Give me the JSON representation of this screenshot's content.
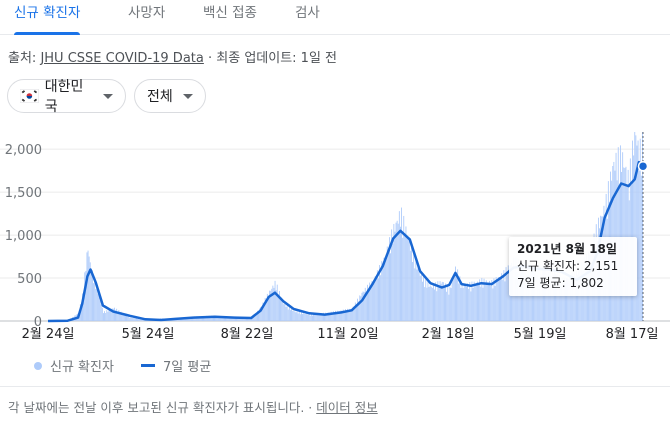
{
  "tabs": [
    {
      "label": "신규 확진자",
      "active": true
    },
    {
      "label": "사망자",
      "active": false
    },
    {
      "label": "백신 접종",
      "active": false
    },
    {
      "label": "검사",
      "active": false
    }
  ],
  "source": {
    "prefix": "출처: ",
    "link_label": "JHU CSSE COVID-19 Data",
    "separator": " · ",
    "updated_label": "최종 업데이트: 1일 전"
  },
  "filters": {
    "country": {
      "label": "대한민국",
      "flag_icon": "south-korea-flag-icon"
    },
    "scope": {
      "label": "전체"
    }
  },
  "legend": {
    "daily_label": "신규 확진자",
    "avg_label": "7일 평균"
  },
  "tooltip": {
    "date": "2021년 8월 18일",
    "daily_label": "신규 확진자",
    "daily_value": "2,151",
    "avg_label": "7일 평균",
    "avg_value": "1,802"
  },
  "footer": {
    "note": "각 날짜에는 전날 이후 보고된 신규 확진자가 표시됩니다.",
    "separator": " · ",
    "link_label": "데이터 정보"
  },
  "colors": {
    "accent": "#1a73e8",
    "bar": "#aecbfa",
    "avg_line": "#1967d2"
  },
  "chart_data": {
    "type": "area",
    "title": "",
    "xlabel": "",
    "ylabel": "",
    "ylim": [
      0,
      2200
    ],
    "yticks": [
      0,
      500,
      1000,
      1500,
      2000
    ],
    "ytick_labels": [
      "0",
      "500",
      "1,000",
      "1,500",
      "2,000"
    ],
    "xtick_labels": [
      "2월 24일",
      "5월 24일",
      "8월 22일",
      "11월 20일",
      "2월 18일",
      "5월 19일",
      "8월 17일"
    ],
    "x_start": "2020-01-22",
    "x_end": "2021-08-18",
    "series": [
      {
        "name": "7일 평균",
        "points": [
          [
            "2020-01-22",
            0
          ],
          [
            "2020-02-10",
            3
          ],
          [
            "2020-02-20",
            40
          ],
          [
            "2020-02-24",
            200
          ],
          [
            "2020-02-29",
            520
          ],
          [
            "2020-03-03",
            600
          ],
          [
            "2020-03-08",
            450
          ],
          [
            "2020-03-15",
            180
          ],
          [
            "2020-03-25",
            110
          ],
          [
            "2020-04-10",
            60
          ],
          [
            "2020-04-25",
            20
          ],
          [
            "2020-05-10",
            12
          ],
          [
            "2020-05-24",
            25
          ],
          [
            "2020-06-10",
            40
          ],
          [
            "2020-07-01",
            50
          ],
          [
            "2020-07-20",
            40
          ],
          [
            "2020-08-05",
            35
          ],
          [
            "2020-08-14",
            120
          ],
          [
            "2020-08-22",
            280
          ],
          [
            "2020-08-28",
            330
          ],
          [
            "2020-09-05",
            230
          ],
          [
            "2020-09-15",
            140
          ],
          [
            "2020-09-30",
            90
          ],
          [
            "2020-10-15",
            75
          ],
          [
            "2020-10-31",
            100
          ],
          [
            "2020-11-10",
            125
          ],
          [
            "2020-11-20",
            240
          ],
          [
            "2020-11-30",
            430
          ],
          [
            "2020-12-10",
            640
          ],
          [
            "2020-12-20",
            960
          ],
          [
            "2020-12-27",
            1050
          ],
          [
            "2021-01-05",
            950
          ],
          [
            "2021-01-15",
            580
          ],
          [
            "2021-01-25",
            440
          ],
          [
            "2021-02-05",
            390
          ],
          [
            "2021-02-12",
            420
          ],
          [
            "2021-02-18",
            560
          ],
          [
            "2021-02-24",
            430
          ],
          [
            "2021-03-05",
            410
          ],
          [
            "2021-03-15",
            440
          ],
          [
            "2021-03-25",
            430
          ],
          [
            "2021-04-05",
            520
          ],
          [
            "2021-04-15",
            620
          ],
          [
            "2021-04-25",
            640
          ],
          [
            "2021-05-05",
            610
          ],
          [
            "2021-05-19",
            600
          ],
          [
            "2021-06-01",
            570
          ],
          [
            "2021-06-15",
            480
          ],
          [
            "2021-06-28",
            580
          ],
          [
            "2021-07-05",
            800
          ],
          [
            "2021-07-12",
            1200
          ],
          [
            "2021-07-20",
            1430
          ],
          [
            "2021-07-28",
            1600
          ],
          [
            "2021-08-04",
            1570
          ],
          [
            "2021-08-10",
            1650
          ],
          [
            "2021-08-14",
            1850
          ],
          [
            "2021-08-18",
            1802
          ]
        ]
      },
      {
        "name": "신규 확진자",
        "points": [
          [
            "2020-01-22",
            0
          ],
          [
            "2020-02-10",
            5
          ],
          [
            "2020-02-20",
            90
          ],
          [
            "2020-02-24",
            300
          ],
          [
            "2020-02-29",
            850
          ],
          [
            "2020-03-03",
            600
          ],
          [
            "2020-03-08",
            420
          ],
          [
            "2020-03-15",
            100
          ],
          [
            "2020-03-25",
            150
          ],
          [
            "2020-04-10",
            40
          ],
          [
            "2020-04-25",
            10
          ],
          [
            "2020-05-10",
            30
          ],
          [
            "2020-05-24",
            20
          ],
          [
            "2020-06-10",
            50
          ],
          [
            "2020-07-01",
            60
          ],
          [
            "2020-07-20",
            30
          ],
          [
            "2020-08-05",
            30
          ],
          [
            "2020-08-14",
            160
          ],
          [
            "2020-08-22",
            330
          ],
          [
            "2020-08-28",
            440
          ],
          [
            "2020-09-05",
            200
          ],
          [
            "2020-09-15",
            110
          ],
          [
            "2020-09-30",
            70
          ],
          [
            "2020-10-15",
            90
          ],
          [
            "2020-10-31",
            120
          ],
          [
            "2020-11-10",
            140
          ],
          [
            "2020-11-20",
            330
          ],
          [
            "2020-11-30",
            450
          ],
          [
            "2020-12-10",
            680
          ],
          [
            "2020-12-20",
            1050
          ],
          [
            "2020-12-27",
            1240
          ],
          [
            "2021-01-05",
            870
          ],
          [
            "2021-01-15",
            520
          ],
          [
            "2021-01-25",
            390
          ],
          [
            "2021-02-05",
            450
          ],
          [
            "2021-02-12",
            350
          ],
          [
            "2021-02-18",
            620
          ],
          [
            "2021-02-24",
            400
          ],
          [
            "2021-03-05",
            420
          ],
          [
            "2021-03-15",
            460
          ],
          [
            "2021-03-25",
            440
          ],
          [
            "2021-04-05",
            540
          ],
          [
            "2021-04-15",
            690
          ],
          [
            "2021-04-25",
            640
          ],
          [
            "2021-05-05",
            580
          ],
          [
            "2021-05-19",
            650
          ],
          [
            "2021-06-01",
            460
          ],
          [
            "2021-06-15",
            550
          ],
          [
            "2021-06-28",
            800
          ],
          [
            "2021-07-05",
            1100
          ],
          [
            "2021-07-12",
            1300
          ],
          [
            "2021-07-20",
            1800
          ],
          [
            "2021-07-28",
            1900
          ],
          [
            "2021-08-04",
            1600
          ],
          [
            "2021-08-10",
            2200
          ],
          [
            "2021-08-14",
            1900
          ],
          [
            "2021-08-18",
            2151
          ]
        ]
      }
    ],
    "highlight": {
      "date": "2021-08-18",
      "value": 1802
    }
  }
}
